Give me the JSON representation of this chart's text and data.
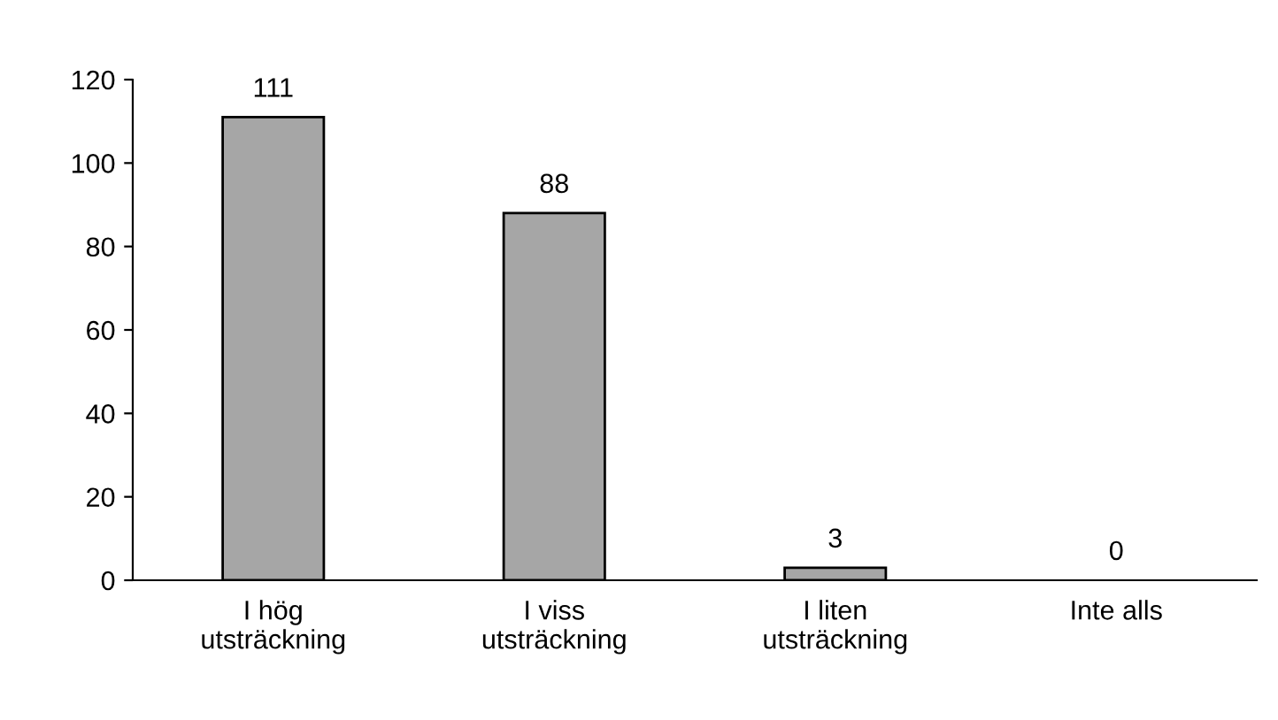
{
  "chart_data": {
    "type": "bar",
    "categories": [
      "I hög\nutsträckning",
      "I viss\nutsträckning",
      "I liten\nutsträckning",
      "Inte alls"
    ],
    "values": [
      111,
      88,
      3,
      0
    ],
    "color": "#a6a6a6",
    "ylim": [
      0,
      120
    ],
    "yticks": [
      0,
      20,
      40,
      60,
      80,
      100,
      120
    ],
    "data_labels": true,
    "grid": false,
    "legend": false
  }
}
